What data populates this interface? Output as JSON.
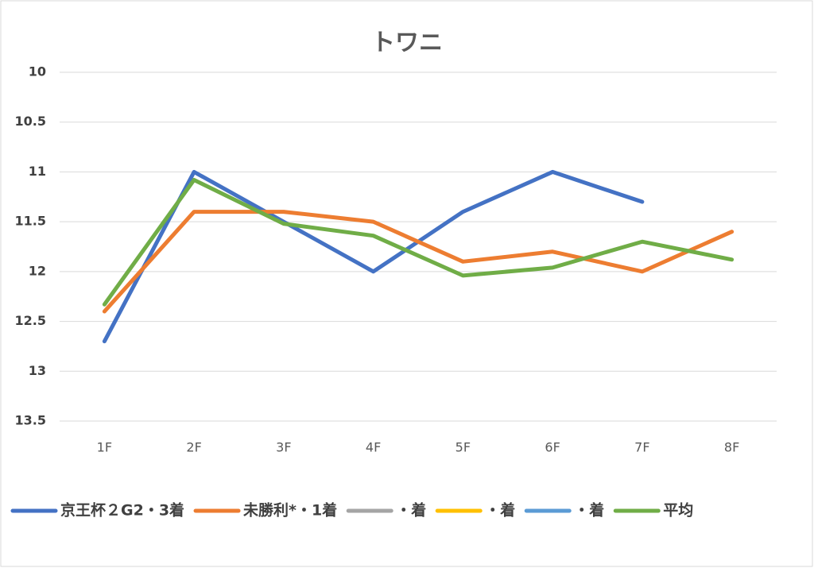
{
  "chart_data": {
    "type": "line",
    "title": "トワニ",
    "categories": [
      "1F",
      "2F",
      "3F",
      "4F",
      "5F",
      "6F",
      "7F",
      "8F"
    ],
    "series": [
      {
        "name": "京王杯２G2・3着",
        "color": "#4472c4",
        "values": [
          12.7,
          11,
          11.5,
          12,
          11.4,
          11,
          11.3,
          null
        ]
      },
      {
        "name": "未勝利*・1着",
        "color": "#ed7d31",
        "values": [
          12.4,
          11.4,
          11.4,
          11.5,
          11.9,
          11.8,
          12,
          11.6
        ]
      },
      {
        "name": "・着",
        "color": "#a5a5a5",
        "values": [
          null,
          null,
          null,
          null,
          null,
          null,
          null,
          null
        ]
      },
      {
        "name": "・着",
        "color": "#ffc000",
        "values": [
          null,
          null,
          null,
          null,
          null,
          null,
          null,
          null
        ]
      },
      {
        "name": "・着",
        "color": "#5b9bd5",
        "values": [
          null,
          null,
          null,
          null,
          null,
          null,
          null,
          null
        ]
      },
      {
        "name": "平均",
        "color": "#70ad47",
        "values": [
          12.33,
          11.08,
          11.52,
          11.64,
          12.04,
          11.96,
          11.7,
          11.88
        ]
      }
    ],
    "ylim": [
      10,
      13.5
    ],
    "y_inverted": true,
    "yticks": [
      10,
      10.5,
      11,
      11.5,
      12,
      12.5,
      13,
      13.5
    ],
    "grid": true,
    "legend": "bottom"
  }
}
